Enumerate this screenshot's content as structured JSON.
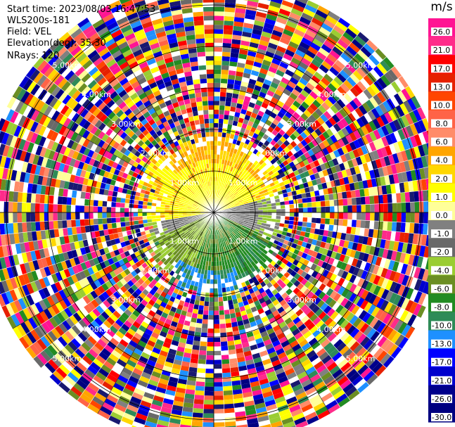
{
  "info": {
    "start_time": "Start time: 2023/08/03 16:47:53",
    "instrument": "WLS200s-181",
    "field": "Field: VEL",
    "elevation": "Elevation(deg): 35.30",
    "nrays": "NRays: 120"
  },
  "chart_data": {
    "type": "heatmap",
    "projection": "polar PPI",
    "field": "VEL",
    "n_rays": 120,
    "range_rings_labels": [
      "1.00km",
      "2.00km",
      "3.00km",
      "4.00km",
      "5.00km"
    ],
    "range_rings_km": [
      1,
      2,
      3,
      4,
      5
    ],
    "colorbar": {
      "unit": "m/s",
      "ticks": [
        "26.0",
        "21.0",
        "17.0",
        "13.0",
        "10.0",
        "8.0",
        "6.0",
        "4.0",
        "2.0",
        "1.0",
        "0.0",
        "-1.0",
        "-2.0",
        "-4.0",
        "-6.0",
        "-8.0",
        "-10.0",
        "-13.0",
        "-17.0",
        "-21.0",
        "-26.0",
        "-30.0"
      ],
      "colors": [
        "#ff1493",
        "#ff2b8a",
        "#ff0000",
        "#e62000",
        "#ff4500",
        "#ff6347",
        "#ff8c69",
        "#ffa500",
        "#ffd700",
        "#ffff00",
        "#ffff99",
        "#808080",
        "#696969",
        "#9acd32",
        "#6b8e23",
        "#228b22",
        "#2e8b57",
        "#1e90ff",
        "#0000ff",
        "#0000cd",
        "#00008b",
        "#000080",
        "#191970"
      ]
    }
  }
}
